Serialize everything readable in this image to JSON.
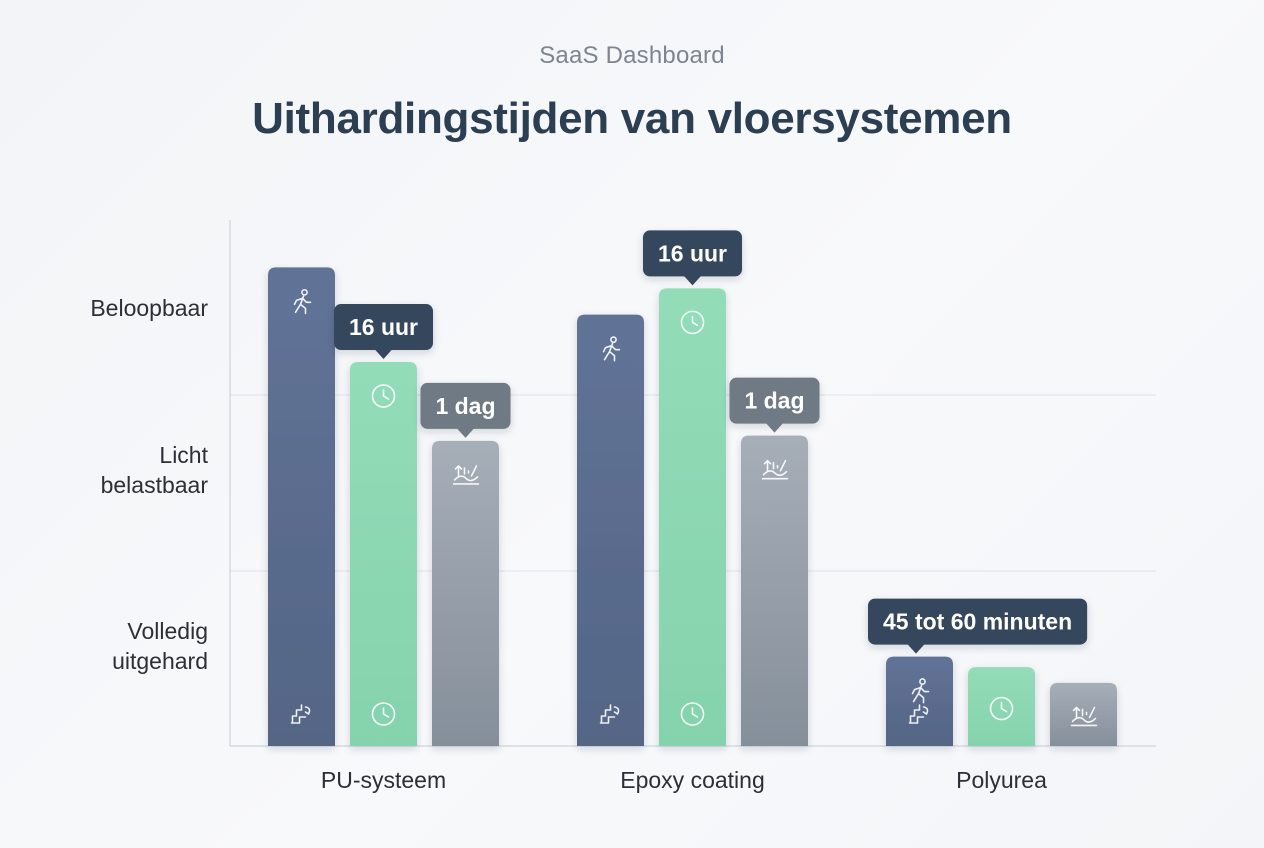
{
  "header": {
    "subtitle": "SaaS Dashboard",
    "title": "Uithardingstijden van vloersystemen"
  },
  "chart_data": {
    "type": "bar",
    "title": "Uithardingstijden van vloersystemen",
    "categories": [
      "PU-systeem",
      "Epoxy coating",
      "Polyurea"
    ],
    "y_tick_labels": [
      {
        "lines": [
          "Beloopbaar"
        ]
      },
      {
        "lines": [
          "Licht",
          "belastbaar"
        ]
      },
      {
        "lines": [
          "Volledig",
          "uitgehard"
        ]
      }
    ],
    "y_axis_values_unit": "relative curing time (0-100)",
    "ylim": [
      0,
      100
    ],
    "grid": true,
    "legend": "none",
    "series": [
      {
        "icon": "walking-person-icon",
        "bottom_icon": "stairs-icon",
        "color": "#5b6c8f",
        "values": [
          91,
          82,
          17
        ]
      },
      {
        "icon": "clock-icon",
        "bottom_icon": "clock-icon",
        "color": "#8dd9b3",
        "values": [
          73,
          87,
          15
        ]
      },
      {
        "icon": "load-chart-icon",
        "color": "#9aa3ad",
        "values": [
          58,
          59,
          12
        ]
      }
    ],
    "callouts": [
      {
        "category": 0,
        "series": 1,
        "text": "16 uur",
        "style": "dark"
      },
      {
        "category": 0,
        "series": 2,
        "text": "1 dag",
        "style": "grey"
      },
      {
        "category": 1,
        "series": 1,
        "text": "16 uur",
        "style": "dark"
      },
      {
        "category": 1,
        "series": 2,
        "text": "1 dag",
        "style": "grey"
      },
      {
        "category": 2,
        "series": 0,
        "text": "45 tot 60 minuten",
        "style": "dark"
      }
    ]
  }
}
